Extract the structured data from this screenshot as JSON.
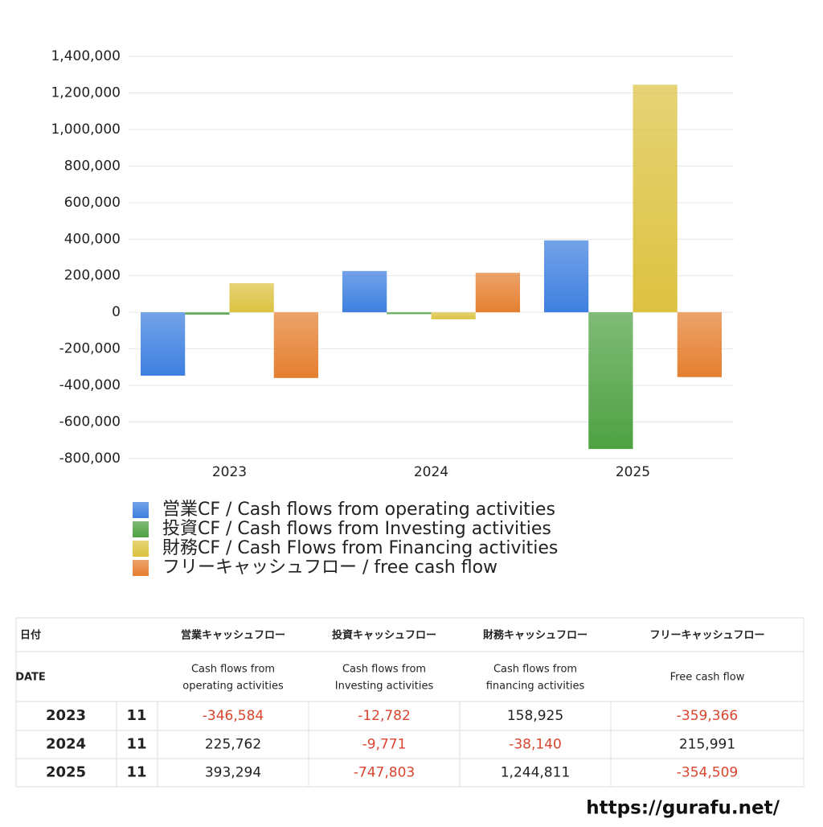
{
  "chart_data": {
    "type": "bar",
    "categories": [
      "2023",
      "2024",
      "2025"
    ],
    "series": [
      {
        "name": "営業CF / Cash flows from operating activities",
        "color": "#3d7fe0",
        "values": [
          -346584,
          225762,
          393294
        ]
      },
      {
        "name": "投資CF / Cash flows from Investing activities",
        "color": "#4ea142",
        "values": [
          -12782,
          -9771,
          -747803
        ]
      },
      {
        "name": "財務CF / Cash Flows from Financing activities",
        "color": "#dcc240",
        "values": [
          158925,
          -38140,
          1244811
        ]
      },
      {
        "name": "フリーキャッシュフロー / free cash flow",
        "color": "#e57f30",
        "values": [
          -359366,
          215991,
          -354509
        ]
      }
    ],
    "ylim": [
      -800000,
      1400000
    ],
    "yticks": [
      {
        "value": -800000,
        "label": "-800,000"
      },
      {
        "value": -600000,
        "label": "-600,000"
      },
      {
        "value": -400000,
        "label": "-400,000"
      },
      {
        "value": -200000,
        "label": "-200,000"
      },
      0,
      {
        "value": 200000,
        "label": "200,000"
      },
      {
        "value": 400000,
        "label": "400,000"
      },
      {
        "value": 600000,
        "label": "600,000"
      },
      {
        "value": 800000,
        "label": "800,000"
      },
      {
        "value": 1000000,
        "label": "1,000,000"
      },
      {
        "value": 1200000,
        "label": "1,200,000"
      },
      {
        "value": 1400000,
        "label": "1,400,000"
      }
    ],
    "grid": true
  },
  "table": {
    "header": [
      "日付",
      "営業キャッシュフロー",
      "投資キャッシュフロー",
      "財務キャッシュフロー",
      "フリーキャッシュフロー"
    ],
    "subheader": [
      "DATE",
      [
        "Cash flows from",
        "operating activities"
      ],
      [
        "Cash flows from",
        "Investing activities"
      ],
      [
        "Cash flows from",
        "financing activities"
      ],
      "Free cash flow"
    ],
    "rows": [
      [
        "2023",
        "11",
        "-346,584",
        "-12,782",
        "158,925",
        "-359,366"
      ],
      [
        "2024",
        "11",
        "225,762",
        "-9,771",
        "-38,140",
        "215,991"
      ],
      [
        "2025",
        "11",
        "393,294",
        "-747,803",
        "1,244,811",
        "-354,509"
      ]
    ]
  },
  "footer": "https://gurafu.net/"
}
